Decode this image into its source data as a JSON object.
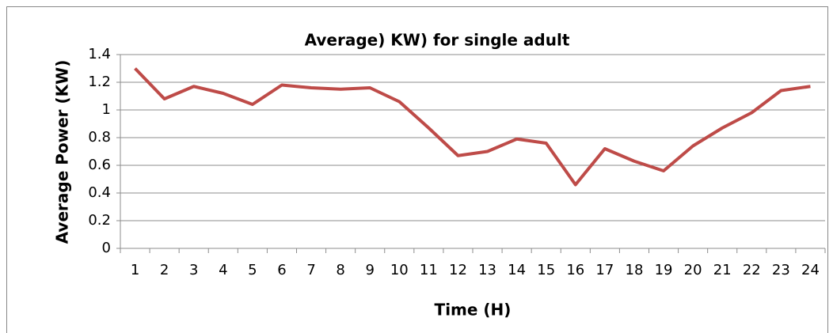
{
  "chart_data": {
    "type": "line",
    "title": "Average) KW) for single adult",
    "x_label": "Time (H)",
    "y_label": "Average Power (KW)",
    "categories": [
      "1",
      "2",
      "3",
      "4",
      "5",
      "6",
      "7",
      "8",
      "9",
      "10",
      "11",
      "12",
      "13",
      "14",
      "15",
      "16",
      "17",
      "18",
      "19",
      "20",
      "21",
      "22",
      "23",
      "24"
    ],
    "series": [
      {
        "name": "Average Power",
        "color": "#be4b48",
        "values": [
          1.3,
          1.08,
          1.17,
          1.12,
          1.04,
          1.18,
          1.16,
          1.15,
          1.16,
          1.06,
          0.87,
          0.67,
          0.7,
          0.79,
          0.76,
          0.46,
          0.72,
          0.63,
          0.56,
          0.74,
          0.87,
          0.98,
          1.14,
          1.17
        ]
      }
    ],
    "ylim": [
      0,
      1.4
    ],
    "yticks": [
      0,
      0.2,
      0.4,
      0.6,
      0.8,
      1,
      1.2,
      1.4
    ],
    "grid": true
  }
}
